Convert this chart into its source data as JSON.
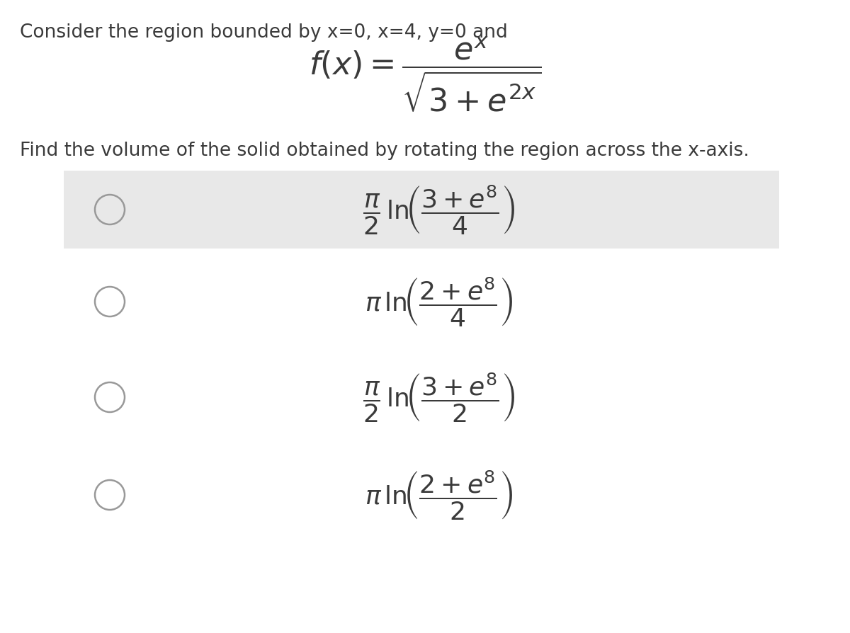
{
  "background_color": "#ffffff",
  "header_text": "Consider the region bounded by x=0, x=4, y=0 and",
  "question_text": "Find the volume of the solid obtained by rotating the region across the x-axis.",
  "options": [
    {
      "highlighted": true
    },
    {
      "highlighted": false
    },
    {
      "highlighted": false
    },
    {
      "highlighted": false
    }
  ],
  "highlight_color": "#e8e8e8",
  "circle_color": "#999999",
  "text_color": "#3a3a3a",
  "header_fontsize": 19,
  "question_fontsize": 19,
  "formula_main_fontsize": 32,
  "option_formula_fontsize": 26
}
